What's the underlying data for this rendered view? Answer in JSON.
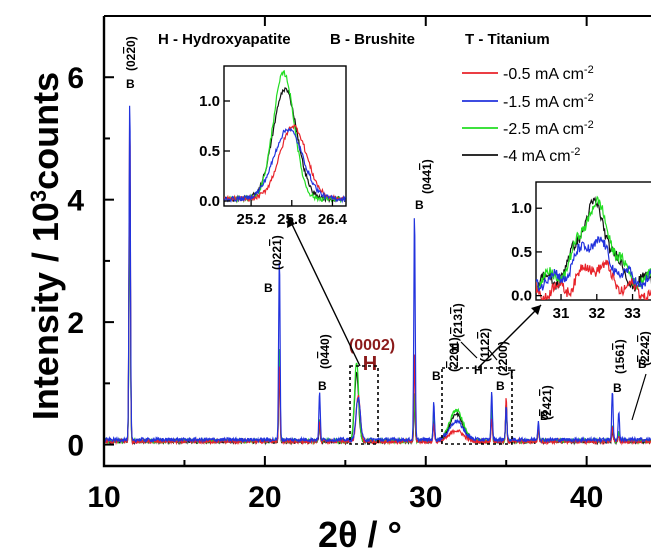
{
  "chart_data": {
    "type": "line",
    "title": "",
    "xlabel": "2θ / °",
    "ylabel": "Intensity / 10^3counts",
    "xlim": [
      10,
      44
    ],
    "ylim": [
      -0.35,
      7.0
    ],
    "x_ticks": [
      "10",
      "20",
      "30",
      "40"
    ],
    "y_ticks": [
      "0",
      "2",
      "4",
      "6"
    ],
    "phase_key": [
      "H - Hydroxyapatite",
      "B - Brushite",
      "T - Titanium"
    ],
    "legend": [
      "-0.5 mA cm-2",
      "-1.5 mA cm-2",
      "-2.5 mA cm-2",
      "-4 mA cm-2"
    ],
    "colors": {
      "-0.5": "#e8232a",
      "-1.5": "#2233dd",
      "-2.5": "#22dd22",
      "-4": "#111111"
    },
    "series": [
      {
        "name": "-0.5 mA cm-2",
        "peaks": [
          [
            11.6,
            5.35
          ],
          [
            20.9,
            1.25
          ],
          [
            23.4,
            0.35
          ],
          [
            25.8,
            0.75
          ],
          [
            29.3,
            1.45
          ],
          [
            30.5,
            0.3
          ],
          [
            31.9,
            0.4
          ],
          [
            34.1,
            0.4
          ],
          [
            35.0,
            0.7
          ],
          [
            37.0,
            0.2
          ],
          [
            41.6,
            0.25
          ],
          [
            42.0,
            0.1
          ]
        ]
      },
      {
        "name": "-1.5 mA cm-2",
        "peaks": [
          [
            11.6,
            5.6
          ],
          [
            20.9,
            3.0
          ],
          [
            23.4,
            0.78
          ],
          [
            25.8,
            0.7
          ],
          [
            29.3,
            3.7
          ],
          [
            30.5,
            0.6
          ],
          [
            31.9,
            0.62
          ],
          [
            34.1,
            0.8
          ],
          [
            35.0,
            0.55
          ],
          [
            37.0,
            0.3
          ],
          [
            41.6,
            0.8
          ],
          [
            42.0,
            0.45
          ]
        ]
      },
      {
        "name": "-2.5 mA cm-2",
        "peaks": [
          [
            11.6,
            4.3
          ],
          [
            20.9,
            1.55
          ],
          [
            23.4,
            0.35
          ],
          [
            25.7,
            1.3
          ],
          [
            29.3,
            0.8
          ],
          [
            30.5,
            0.5
          ],
          [
            31.9,
            1.02
          ],
          [
            34.1,
            0.55
          ],
          [
            35.0,
            0.55
          ],
          [
            37.0,
            0.2
          ],
          [
            41.6,
            0.25
          ],
          [
            42.0,
            0.15
          ]
        ]
      },
      {
        "name": "-4 mA cm-2",
        "peaks": [
          [
            11.6,
            4.6
          ],
          [
            20.9,
            1.2
          ],
          [
            23.4,
            0.3
          ],
          [
            25.7,
            1.13
          ],
          [
            29.3,
            0.7
          ],
          [
            30.5,
            0.45
          ],
          [
            31.9,
            1.0
          ],
          [
            34.1,
            0.55
          ],
          [
            35.0,
            0.6
          ],
          [
            37.0,
            0.2
          ],
          [
            41.6,
            0.2
          ],
          [
            42.0,
            0.1
          ]
        ]
      }
    ],
    "peak_labels": [
      {
        "phase": "B",
        "hkl": "(02̅2̅0)",
        "x": 11.6
      },
      {
        "phase": "B",
        "hkl": "(022̅1)",
        "x": 20.9
      },
      {
        "phase": "B",
        "hkl": "(04̅40)",
        "x": 23.4
      },
      {
        "phase": "H",
        "hkl": "(0002)",
        "x": 25.8
      },
      {
        "phase": "B",
        "hkl": "(044̅1)",
        "x": 29.3
      },
      {
        "phase": "B",
        "hkl": "(2̅201)",
        "x": 30.5
      },
      {
        "phase": "H",
        "hkl": "(2̅13̅1)",
        "x": 31.6
      },
      {
        "phase": "H",
        "hkl": "(112̅2)",
        "x": 32.3
      },
      {
        "phase": "B",
        "hkl": "(2200)",
        "x": 34.1
      },
      {
        "phase": "T",
        "hkl": "",
        "x": 35.0
      },
      {
        "phase": "B",
        "hkl": "(2̅42̅1)",
        "x": 37.0
      },
      {
        "phase": "B",
        "hkl": "(156̅1)",
        "x": 41.6
      },
      {
        "phase": "B",
        "hkl": "(2̅242̅)",
        "x": 42.0
      }
    ],
    "inset1": {
      "xlim": [
        24.8,
        26.6
      ],
      "ylim": [
        -0.05,
        1.35
      ],
      "x_ticks": [
        "25.2",
        "25.8",
        "26.4"
      ],
      "y_ticks": [
        "0.0",
        "0.5",
        "1.0"
      ],
      "center": 25.72,
      "peaks": {
        "-0.5": [
          25.82,
          0.75,
          0.28
        ],
        "-1.5": [
          25.75,
          0.72,
          0.3
        ],
        "-2.5": [
          25.68,
          1.28,
          0.22
        ],
        "-4": [
          25.7,
          1.12,
          0.25
        ]
      }
    },
    "inset2": {
      "xlim": [
        30.3,
        33.6
      ],
      "ylim": [
        -0.05,
        1.3
      ],
      "x_ticks": [
        "31",
        "32",
        "33"
      ],
      "y_ticks": [
        "0.0",
        "0.5",
        "1.0"
      ],
      "peaks": {
        "-0.5": [
          31.95,
          0.35,
          0.6
        ],
        "-1.5": [
          31.9,
          0.62,
          0.6
        ],
        "-2.5": [
          31.95,
          1.02,
          0.6
        ],
        "-4": [
          31.9,
          1.0,
          0.6
        ]
      },
      "baseline": {
        "-0.5": 0.05,
        "-1.5": 0.18,
        "-2.5": 0.18,
        "-4": 0.15
      }
    }
  }
}
